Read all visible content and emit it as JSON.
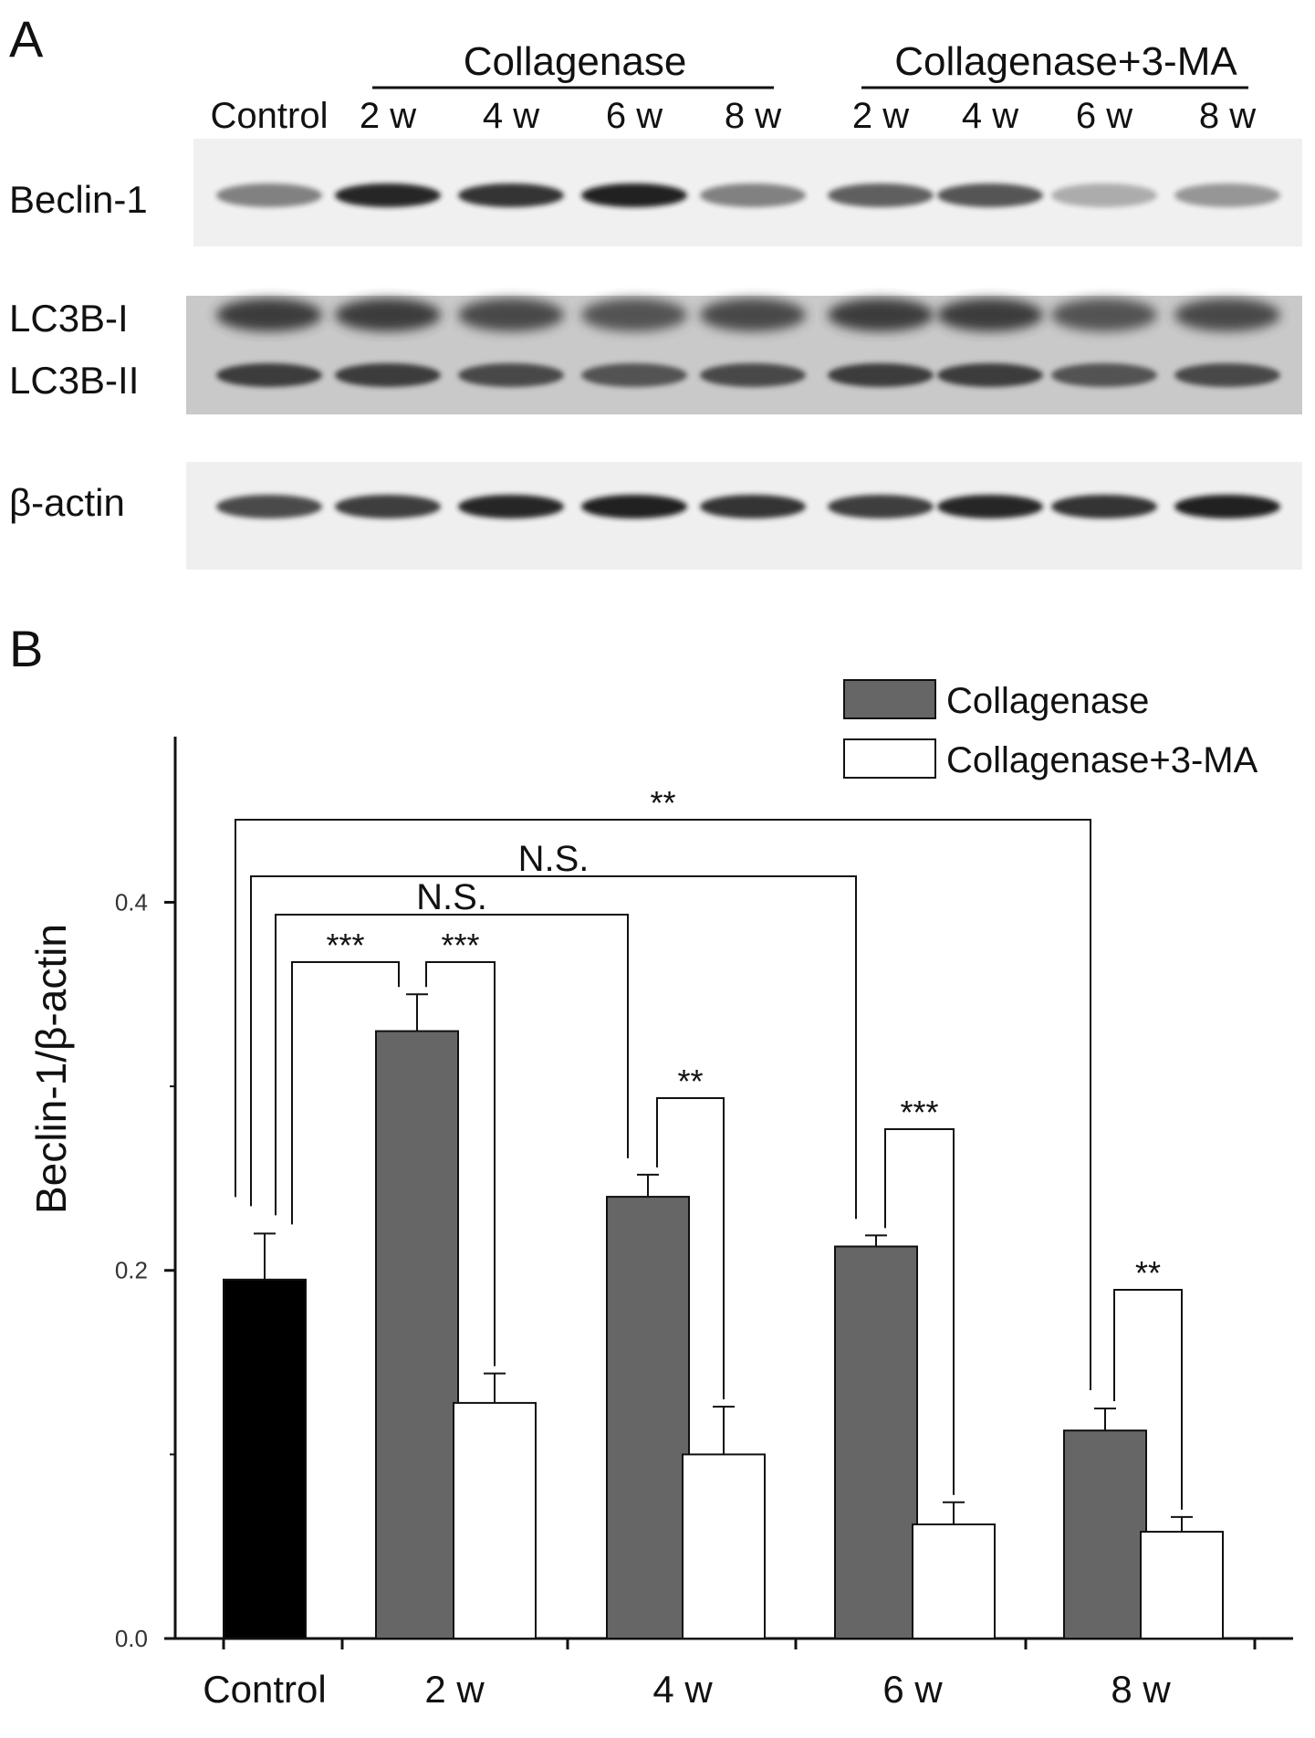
{
  "panel_a": {
    "label": "A",
    "groups": [
      {
        "title": "Collagenase"
      },
      {
        "title": "Collagenase+3-MA"
      }
    ],
    "lanes": [
      "Control",
      "2 w",
      "4 w",
      "6 w",
      "8 w",
      "2 w",
      "4 w",
      "6 w",
      "8 w"
    ],
    "blots": [
      {
        "labels": [
          "Beclin-1"
        ],
        "band_intensity": [
          0.55,
          0.95,
          0.9,
          1.0,
          0.55,
          0.7,
          0.75,
          0.35,
          0.45
        ]
      },
      {
        "labels": [
          "LC3B-I",
          "LC3B-II"
        ],
        "band_intensity": [
          0.85,
          0.85,
          0.8,
          0.75,
          0.8,
          0.85,
          0.85,
          0.75,
          0.8
        ]
      },
      {
        "labels": [
          "β-actin"
        ],
        "band_intensity": [
          0.8,
          0.85,
          0.95,
          1.0,
          0.9,
          0.85,
          0.95,
          0.9,
          1.0
        ]
      }
    ]
  },
  "panel_b": {
    "label": "B"
  },
  "colors": {
    "control": "#000000",
    "collagenase": "#666666",
    "collagenase_3ma": "#ffffff"
  },
  "chart_data": {
    "type": "bar",
    "categories": [
      "Control",
      "2 w",
      "4 w",
      "6 w",
      "8 w"
    ],
    "ylabel": "Beclin-1/β-actin",
    "xlabel": "",
    "ylim": [
      0,
      0.49
    ],
    "yticks": [
      "0.0",
      "0.2",
      "0.4"
    ],
    "grid": false,
    "legend_position": "top-right",
    "control": {
      "value": 0.195,
      "error": 0.025
    },
    "series": [
      {
        "name": "Collagenase",
        "values": [
          null,
          0.33,
          0.24,
          0.213,
          0.113
        ],
        "errors": [
          null,
          0.02,
          0.012,
          0.006,
          0.012
        ]
      },
      {
        "name": "Collagenase+3-MA",
        "values": [
          null,
          0.128,
          0.1,
          0.062,
          0.058
        ],
        "errors": [
          null,
          0.016,
          0.026,
          0.012,
          0.008
        ]
      }
    ],
    "annotations": [
      {
        "text": "**",
        "between": [
          "Control",
          "8 w Collagenase"
        ]
      },
      {
        "text": "N.S.",
        "between": [
          "Control",
          "6 w Collagenase"
        ]
      },
      {
        "text": "N.S.",
        "between": [
          "Control",
          "4 w Collagenase"
        ]
      },
      {
        "text": "***",
        "between": [
          "Control",
          "2 w Collagenase"
        ]
      },
      {
        "text": "***",
        "between": [
          "2 w Collagenase",
          "2 w Collagenase+3-MA"
        ]
      },
      {
        "text": "**",
        "between": [
          "4 w Collagenase",
          "4 w Collagenase+3-MA"
        ]
      },
      {
        "text": "***",
        "between": [
          "6 w Collagenase",
          "6 w Collagenase+3-MA"
        ]
      },
      {
        "text": "**",
        "between": [
          "8 w Collagenase",
          "8 w Collagenase+3-MA"
        ]
      }
    ]
  }
}
